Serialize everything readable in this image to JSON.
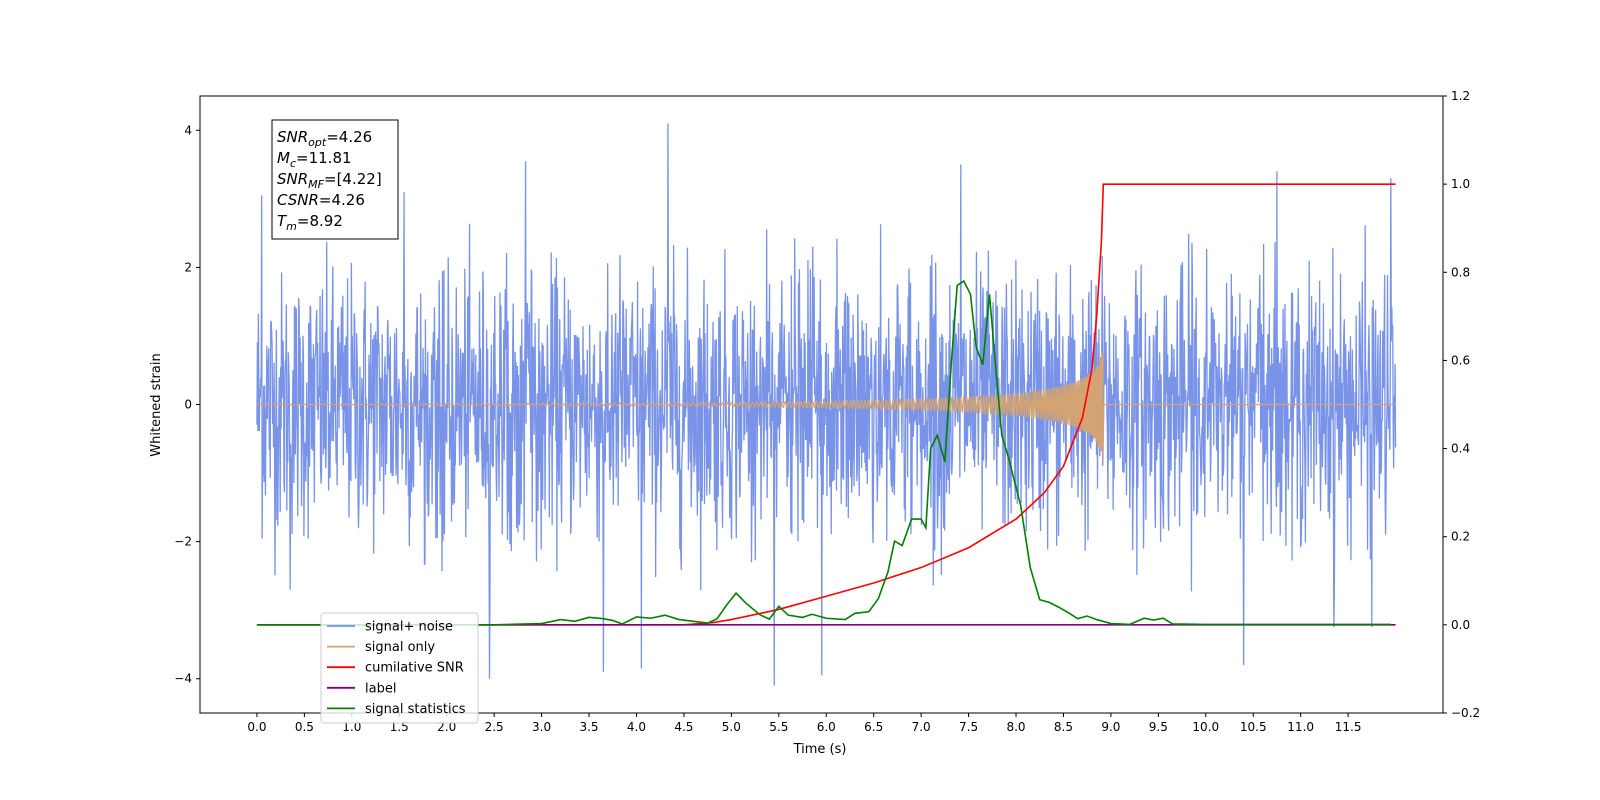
{
  "chart_data": {
    "type": "line",
    "title": "",
    "xlabel": "Time (s)",
    "ylabel": "Whitened strain",
    "ylabel_right": "",
    "xlim": [
      -0.6,
      12.5
    ],
    "ylim": [
      -4.5,
      4.5
    ],
    "ylim_right": [
      -0.2,
      1.2
    ],
    "x_ticks": [
      0.0,
      0.5,
      1.0,
      1.5,
      2.0,
      2.5,
      3.0,
      3.5,
      4.0,
      4.5,
      5.0,
      5.5,
      6.0,
      6.5,
      7.0,
      7.5,
      8.0,
      8.5,
      9.0,
      9.5,
      10.0,
      10.5,
      11.0,
      11.5
    ],
    "x_tick_labels": [
      "0.0",
      "0.5",
      "1.0",
      "1.5",
      "2.0",
      "2.5",
      "3.0",
      "3.5",
      "4.0",
      "4.5",
      "5.0",
      "5.5",
      "6.0",
      "6.5",
      "7.0",
      "7.5",
      "8.0",
      "8.5",
      "9.0",
      "9.5",
      "10.0",
      "10.5",
      "11.0",
      "11.5"
    ],
    "y_ticks": [
      -4,
      -2,
      0,
      2,
      4
    ],
    "y_tick_labels": [
      "−4",
      "−2",
      "0",
      "2",
      "4"
    ],
    "y_ticks_right": [
      -0.2,
      0.0,
      0.2,
      0.4,
      0.6,
      0.8,
      1.0,
      1.2
    ],
    "y_tick_labels_right": [
      "−0.2",
      "0.0",
      "0.2",
      "0.4",
      "0.6",
      "0.8",
      "1.0",
      "1.2"
    ],
    "grid": false,
    "legend_position": "lower-left",
    "annotation": {
      "lines": [
        {
          "main": "SNR",
          "sub": "opt",
          "rest": "=4.26"
        },
        {
          "main": "M",
          "sub": "c",
          "rest": "=11.81"
        },
        {
          "main": "SNR",
          "sub": "MF",
          "rest": "=[4.22]"
        },
        {
          "main": "CSNR",
          "sub": "",
          "rest": "=4.26"
        },
        {
          "main": "T",
          "sub": "m",
          "rest": "=8.92"
        }
      ]
    },
    "series": [
      {
        "name": "signal+ noise",
        "color": "#7893e8",
        "axis": "left",
        "x_start": 0.0,
        "x_end": 12.0,
        "typical_range": [
          -1.9,
          1.9
        ],
        "peaks": [
          [
            4.33,
            4.1
          ],
          [
            2.83,
            3.55
          ],
          [
            7.42,
            3.5
          ],
          [
            10.75,
            3.4
          ],
          [
            11.95,
            3.3
          ],
          [
            1.55,
            3.1
          ],
          [
            0.05,
            3.05
          ]
        ],
        "troughs": [
          [
            5.45,
            -4.1
          ],
          [
            2.45,
            -4.0
          ],
          [
            5.95,
            -3.95
          ],
          [
            3.65,
            -3.9
          ],
          [
            4.05,
            -3.85
          ],
          [
            10.4,
            -3.8
          ],
          [
            11.35,
            -3.25
          ],
          [
            11.75,
            -3.25
          ],
          [
            0.35,
            -2.7
          ]
        ]
      },
      {
        "name": "signal only",
        "color": "#d4a373",
        "axis": "left",
        "merger_time": 8.92,
        "envelope": [
          [
            0.0,
            0.0
          ],
          [
            4.5,
            0.02
          ],
          [
            6.0,
            0.05
          ],
          [
            7.0,
            0.08
          ],
          [
            7.5,
            0.11
          ],
          [
            8.0,
            0.16
          ],
          [
            8.3,
            0.22
          ],
          [
            8.5,
            0.28
          ],
          [
            8.65,
            0.35
          ],
          [
            8.75,
            0.42
          ],
          [
            8.85,
            0.55
          ],
          [
            8.92,
            0.82
          ],
          [
            8.94,
            0.0
          ],
          [
            12.0,
            0.0
          ]
        ]
      },
      {
        "name": "cumilative SNR",
        "color": "#ff0000",
        "axis": "right",
        "points": [
          [
            0.0,
            0.0
          ],
          [
            4.5,
            0.0
          ],
          [
            4.8,
            0.005
          ],
          [
            5.0,
            0.012
          ],
          [
            5.5,
            0.035
          ],
          [
            6.0,
            0.065
          ],
          [
            6.5,
            0.095
          ],
          [
            7.0,
            0.13
          ],
          [
            7.5,
            0.175
          ],
          [
            8.0,
            0.24
          ],
          [
            8.3,
            0.3
          ],
          [
            8.5,
            0.36
          ],
          [
            8.7,
            0.47
          ],
          [
            8.8,
            0.58
          ],
          [
            8.85,
            0.7
          ],
          [
            8.9,
            0.87
          ],
          [
            8.92,
            1.0
          ],
          [
            12.0,
            1.0
          ]
        ]
      },
      {
        "name": "label",
        "color": "#800080",
        "axis": "right",
        "points": [
          [
            0.0,
            0.0
          ],
          [
            12.0,
            0.0
          ]
        ]
      },
      {
        "name": "signal statistics",
        "color": "#008000",
        "axis": "right",
        "points": [
          [
            0.0,
            0.0
          ],
          [
            2.5,
            0.0
          ],
          [
            3.0,
            0.003
          ],
          [
            3.2,
            0.012
          ],
          [
            3.35,
            0.008
          ],
          [
            3.5,
            0.017
          ],
          [
            3.65,
            0.014
          ],
          [
            3.75,
            0.01
          ],
          [
            3.85,
            0.002
          ],
          [
            4.0,
            0.018
          ],
          [
            4.15,
            0.015
          ],
          [
            4.3,
            0.022
          ],
          [
            4.45,
            0.012
          ],
          [
            4.6,
            0.008
          ],
          [
            4.75,
            0.004
          ],
          [
            4.85,
            0.014
          ],
          [
            4.95,
            0.045
          ],
          [
            5.05,
            0.072
          ],
          [
            5.15,
            0.05
          ],
          [
            5.3,
            0.023
          ],
          [
            5.4,
            0.013
          ],
          [
            5.5,
            0.042
          ],
          [
            5.6,
            0.022
          ],
          [
            5.75,
            0.017
          ],
          [
            5.85,
            0.024
          ],
          [
            6.0,
            0.015
          ],
          [
            6.2,
            0.012
          ],
          [
            6.3,
            0.026
          ],
          [
            6.45,
            0.03
          ],
          [
            6.55,
            0.06
          ],
          [
            6.65,
            0.12
          ],
          [
            6.72,
            0.19
          ],
          [
            6.8,
            0.18
          ],
          [
            6.9,
            0.24
          ],
          [
            7.0,
            0.24
          ],
          [
            7.05,
            0.22
          ],
          [
            7.1,
            0.4
          ],
          [
            7.17,
            0.43
          ],
          [
            7.25,
            0.37
          ],
          [
            7.32,
            0.6
          ],
          [
            7.38,
            0.77
          ],
          [
            7.45,
            0.78
          ],
          [
            7.52,
            0.75
          ],
          [
            7.58,
            0.63
          ],
          [
            7.65,
            0.59
          ],
          [
            7.72,
            0.75
          ],
          [
            7.78,
            0.6
          ],
          [
            7.85,
            0.43
          ],
          [
            7.92,
            0.38
          ],
          [
            8.05,
            0.27
          ],
          [
            8.15,
            0.13
          ],
          [
            8.25,
            0.057
          ],
          [
            8.35,
            0.051
          ],
          [
            8.45,
            0.04
          ],
          [
            8.55,
            0.028
          ],
          [
            8.65,
            0.014
          ],
          [
            8.75,
            0.02
          ],
          [
            8.85,
            0.012
          ],
          [
            9.0,
            0.003
          ],
          [
            9.2,
            0.001
          ],
          [
            9.35,
            0.015
          ],
          [
            9.45,
            0.011
          ],
          [
            9.55,
            0.015
          ],
          [
            9.65,
            0.002
          ],
          [
            10.0,
            0.001
          ],
          [
            11.95,
            0.001
          ]
        ]
      }
    ]
  }
}
